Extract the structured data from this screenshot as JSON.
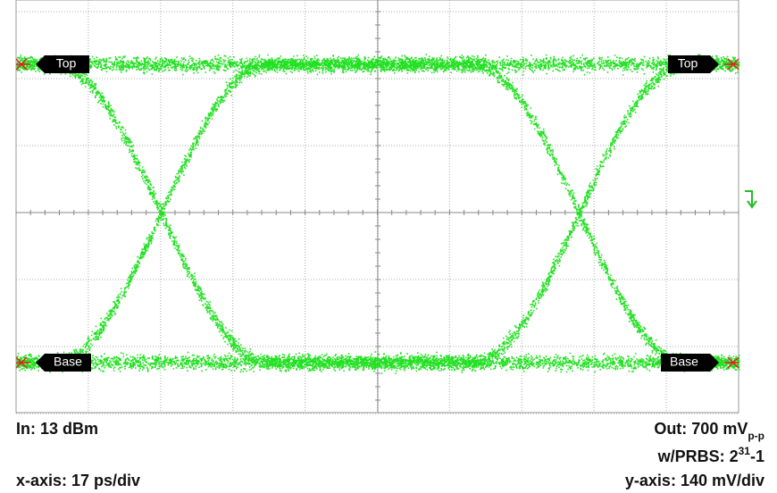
{
  "markers": {
    "left_top": "Top",
    "left_base": "Base",
    "right_top": "Top",
    "right_base": "Base"
  },
  "footer": {
    "input": "In: 13 dBm",
    "x_axis": "x-axis: 17 ps/div",
    "output": "Out: 700 mV",
    "output_sub": "p-p",
    "prbs": "w/PRBS: 2",
    "prbs_exp": "31",
    "prbs_tail": "-1",
    "y_axis": "y-axis: 140 mV/div"
  }
}
